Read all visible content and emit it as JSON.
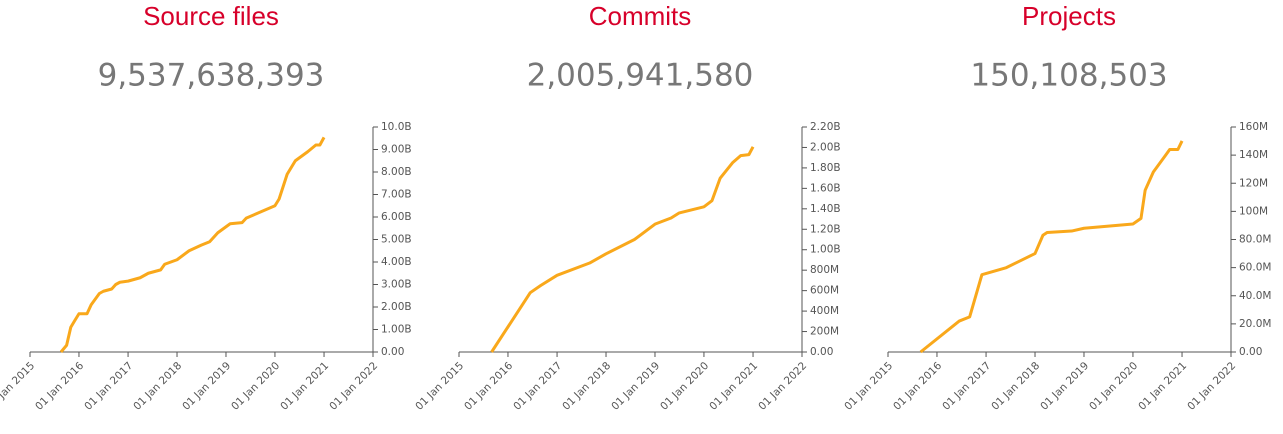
{
  "chart_data": [
    {
      "type": "line",
      "title": "Source files",
      "subtitle": "9,537,638,393",
      "color": "#f9a81b",
      "x": [
        "2015-08-20",
        "2015-10-01",
        "2015-11-01",
        "2015-12-01",
        "2016-01-01",
        "2016-03-01",
        "2016-04-01",
        "2016-06-01",
        "2016-07-01",
        "2016-09-01",
        "2016-10-01",
        "2016-11-01",
        "2017-01-01",
        "2017-04-01",
        "2017-06-01",
        "2017-09-01",
        "2017-10-01",
        "2018-01-01",
        "2018-04-01",
        "2018-07-01",
        "2018-09-01",
        "2018-11-01",
        "2019-02-01",
        "2019-05-01",
        "2019-06-01",
        "2020-01-01",
        "2020-02-01",
        "2020-04-01",
        "2020-06-01",
        "2020-09-01",
        "2020-11-01",
        "2020-12-01",
        "2021-01-01"
      ],
      "values": [
        0,
        300000000,
        1100000000,
        1400000000,
        1700000000,
        1700000000,
        2100000000,
        2600000000,
        2700000000,
        2800000000,
        3000000000,
        3100000000,
        3150000000,
        3300000000,
        3500000000,
        3650000000,
        3900000000,
        4100000000,
        4500000000,
        4750000000,
        4900000000,
        5300000000,
        5700000000,
        5750000000,
        5950000000,
        6500000000,
        6800000000,
        7900000000,
        8500000000,
        8900000000,
        9200000000,
        9200000000,
        9537638393
      ],
      "xlim": [
        "2015-01-01",
        "2022-01-01"
      ],
      "xticks": [
        {
          "value": "2015-01-01",
          "label": "01 Jan 2015"
        },
        {
          "value": "2016-01-01",
          "label": "01 Jan 2016"
        },
        {
          "value": "2017-01-01",
          "label": "01 Jan 2017"
        },
        {
          "value": "2018-01-01",
          "label": "01 Jan 2018"
        },
        {
          "value": "2019-01-01",
          "label": "01 Jan 2019"
        },
        {
          "value": "2020-01-01",
          "label": "01 Jan 2020"
        },
        {
          "value": "2021-01-01",
          "label": "01 Jan 2021"
        },
        {
          "value": "2022-01-01",
          "label": "01 Jan 2022"
        }
      ],
      "ylim": [
        0,
        10000000000
      ],
      "yticks": [
        {
          "value": 0,
          "label": "0.00"
        },
        {
          "value": 1000000000,
          "label": "1.00B"
        },
        {
          "value": 2000000000,
          "label": "2.00B"
        },
        {
          "value": 3000000000,
          "label": "3.00B"
        },
        {
          "value": 4000000000,
          "label": "4.00B"
        },
        {
          "value": 5000000000,
          "label": "5.00B"
        },
        {
          "value": 6000000000,
          "label": "6.00B"
        },
        {
          "value": 7000000000,
          "label": "7.00B"
        },
        {
          "value": 8000000000,
          "label": "8.00B"
        },
        {
          "value": 9000000000,
          "label": "9.00B"
        },
        {
          "value": 10000000000,
          "label": "10.0B"
        }
      ]
    },
    {
      "type": "line",
      "title": "Commits",
      "subtitle": "2,005,941,580",
      "color": "#f9a81b",
      "x": [
        "2015-09-01",
        "2016-06-15",
        "2016-09-01",
        "2017-01-01",
        "2017-09-01",
        "2018-01-01",
        "2018-08-01",
        "2019-01-01",
        "2019-05-01",
        "2019-07-01",
        "2020-01-01",
        "2020-03-01",
        "2020-05-01",
        "2020-08-01",
        "2020-10-01",
        "2020-12-01",
        "2021-01-01"
      ],
      "values": [
        0,
        580000000,
        650000000,
        750000000,
        870000000,
        960000000,
        1100000000,
        1250000000,
        1310000000,
        1360000000,
        1420000000,
        1480000000,
        1700000000,
        1850000000,
        1920000000,
        1930000000,
        2005941580
      ],
      "xlim": [
        "2015-01-01",
        "2022-01-01"
      ],
      "xticks": [
        {
          "value": "2015-01-01",
          "label": "01 Jan 2015"
        },
        {
          "value": "2016-01-01",
          "label": "01 Jan 2016"
        },
        {
          "value": "2017-01-01",
          "label": "01 Jan 2017"
        },
        {
          "value": "2018-01-01",
          "label": "01 Jan 2018"
        },
        {
          "value": "2019-01-01",
          "label": "01 Jan 2019"
        },
        {
          "value": "2020-01-01",
          "label": "01 Jan 2020"
        },
        {
          "value": "2021-01-01",
          "label": "01 Jan 2021"
        },
        {
          "value": "2022-01-01",
          "label": "01 Jan 2022"
        }
      ],
      "ylim": [
        0,
        2200000000
      ],
      "yticks": [
        {
          "value": 0,
          "label": "0.00"
        },
        {
          "value": 200000000,
          "label": "200M"
        },
        {
          "value": 400000000,
          "label": "400M"
        },
        {
          "value": 600000000,
          "label": "600M"
        },
        {
          "value": 800000000,
          "label": "800M"
        },
        {
          "value": 1000000000,
          "label": "1.00B"
        },
        {
          "value": 1200000000,
          "label": "1.20B"
        },
        {
          "value": 1400000000,
          "label": "1.40B"
        },
        {
          "value": 1600000000,
          "label": "1.60B"
        },
        {
          "value": 1800000000,
          "label": "1.80B"
        },
        {
          "value": 2000000000,
          "label": "2.00B"
        },
        {
          "value": 2200000000,
          "label": "2.20B"
        }
      ]
    },
    {
      "type": "line",
      "title": "Projects",
      "subtitle": "150,108,503",
      "color": "#f9a81b",
      "x": [
        "2015-09-01",
        "2016-06-15",
        "2016-09-01",
        "2016-12-01",
        "2017-06-01",
        "2018-01-01",
        "2018-03-01",
        "2018-04-01",
        "2018-10-01",
        "2019-01-01",
        "2020-01-01",
        "2020-03-01",
        "2020-04-01",
        "2020-06-01",
        "2020-09-01",
        "2020-10-01",
        "2020-12-01",
        "2021-01-01"
      ],
      "values": [
        0,
        22000000,
        25000000,
        55000000,
        60000000,
        70000000,
        83000000,
        85000000,
        86000000,
        88000000,
        91000000,
        95000000,
        115000000,
        128000000,
        140000000,
        144000000,
        144000000,
        150108503
      ],
      "xlim": [
        "2015-01-01",
        "2022-01-01"
      ],
      "xticks": [
        {
          "value": "2015-01-01",
          "label": "01 Jan 2015"
        },
        {
          "value": "2016-01-01",
          "label": "01 Jan 2016"
        },
        {
          "value": "2017-01-01",
          "label": "01 Jan 2017"
        },
        {
          "value": "2018-01-01",
          "label": "01 Jan 2018"
        },
        {
          "value": "2019-01-01",
          "label": "01 Jan 2019"
        },
        {
          "value": "2020-01-01",
          "label": "01 Jan 2020"
        },
        {
          "value": "2021-01-01",
          "label": "01 Jan 2021"
        },
        {
          "value": "2022-01-01",
          "label": "01 Jan 2022"
        }
      ],
      "ylim": [
        0,
        160000000
      ],
      "yticks": [
        {
          "value": 0,
          "label": "0.00"
        },
        {
          "value": 20000000,
          "label": "20.0M"
        },
        {
          "value": 40000000,
          "label": "40.0M"
        },
        {
          "value": 60000000,
          "label": "60.0M"
        },
        {
          "value": 80000000,
          "label": "80.0M"
        },
        {
          "value": 100000000,
          "label": "100M"
        },
        {
          "value": 120000000,
          "label": "120M"
        },
        {
          "value": 140000000,
          "label": "140M"
        },
        {
          "value": 160000000,
          "label": "160M"
        }
      ]
    }
  ]
}
